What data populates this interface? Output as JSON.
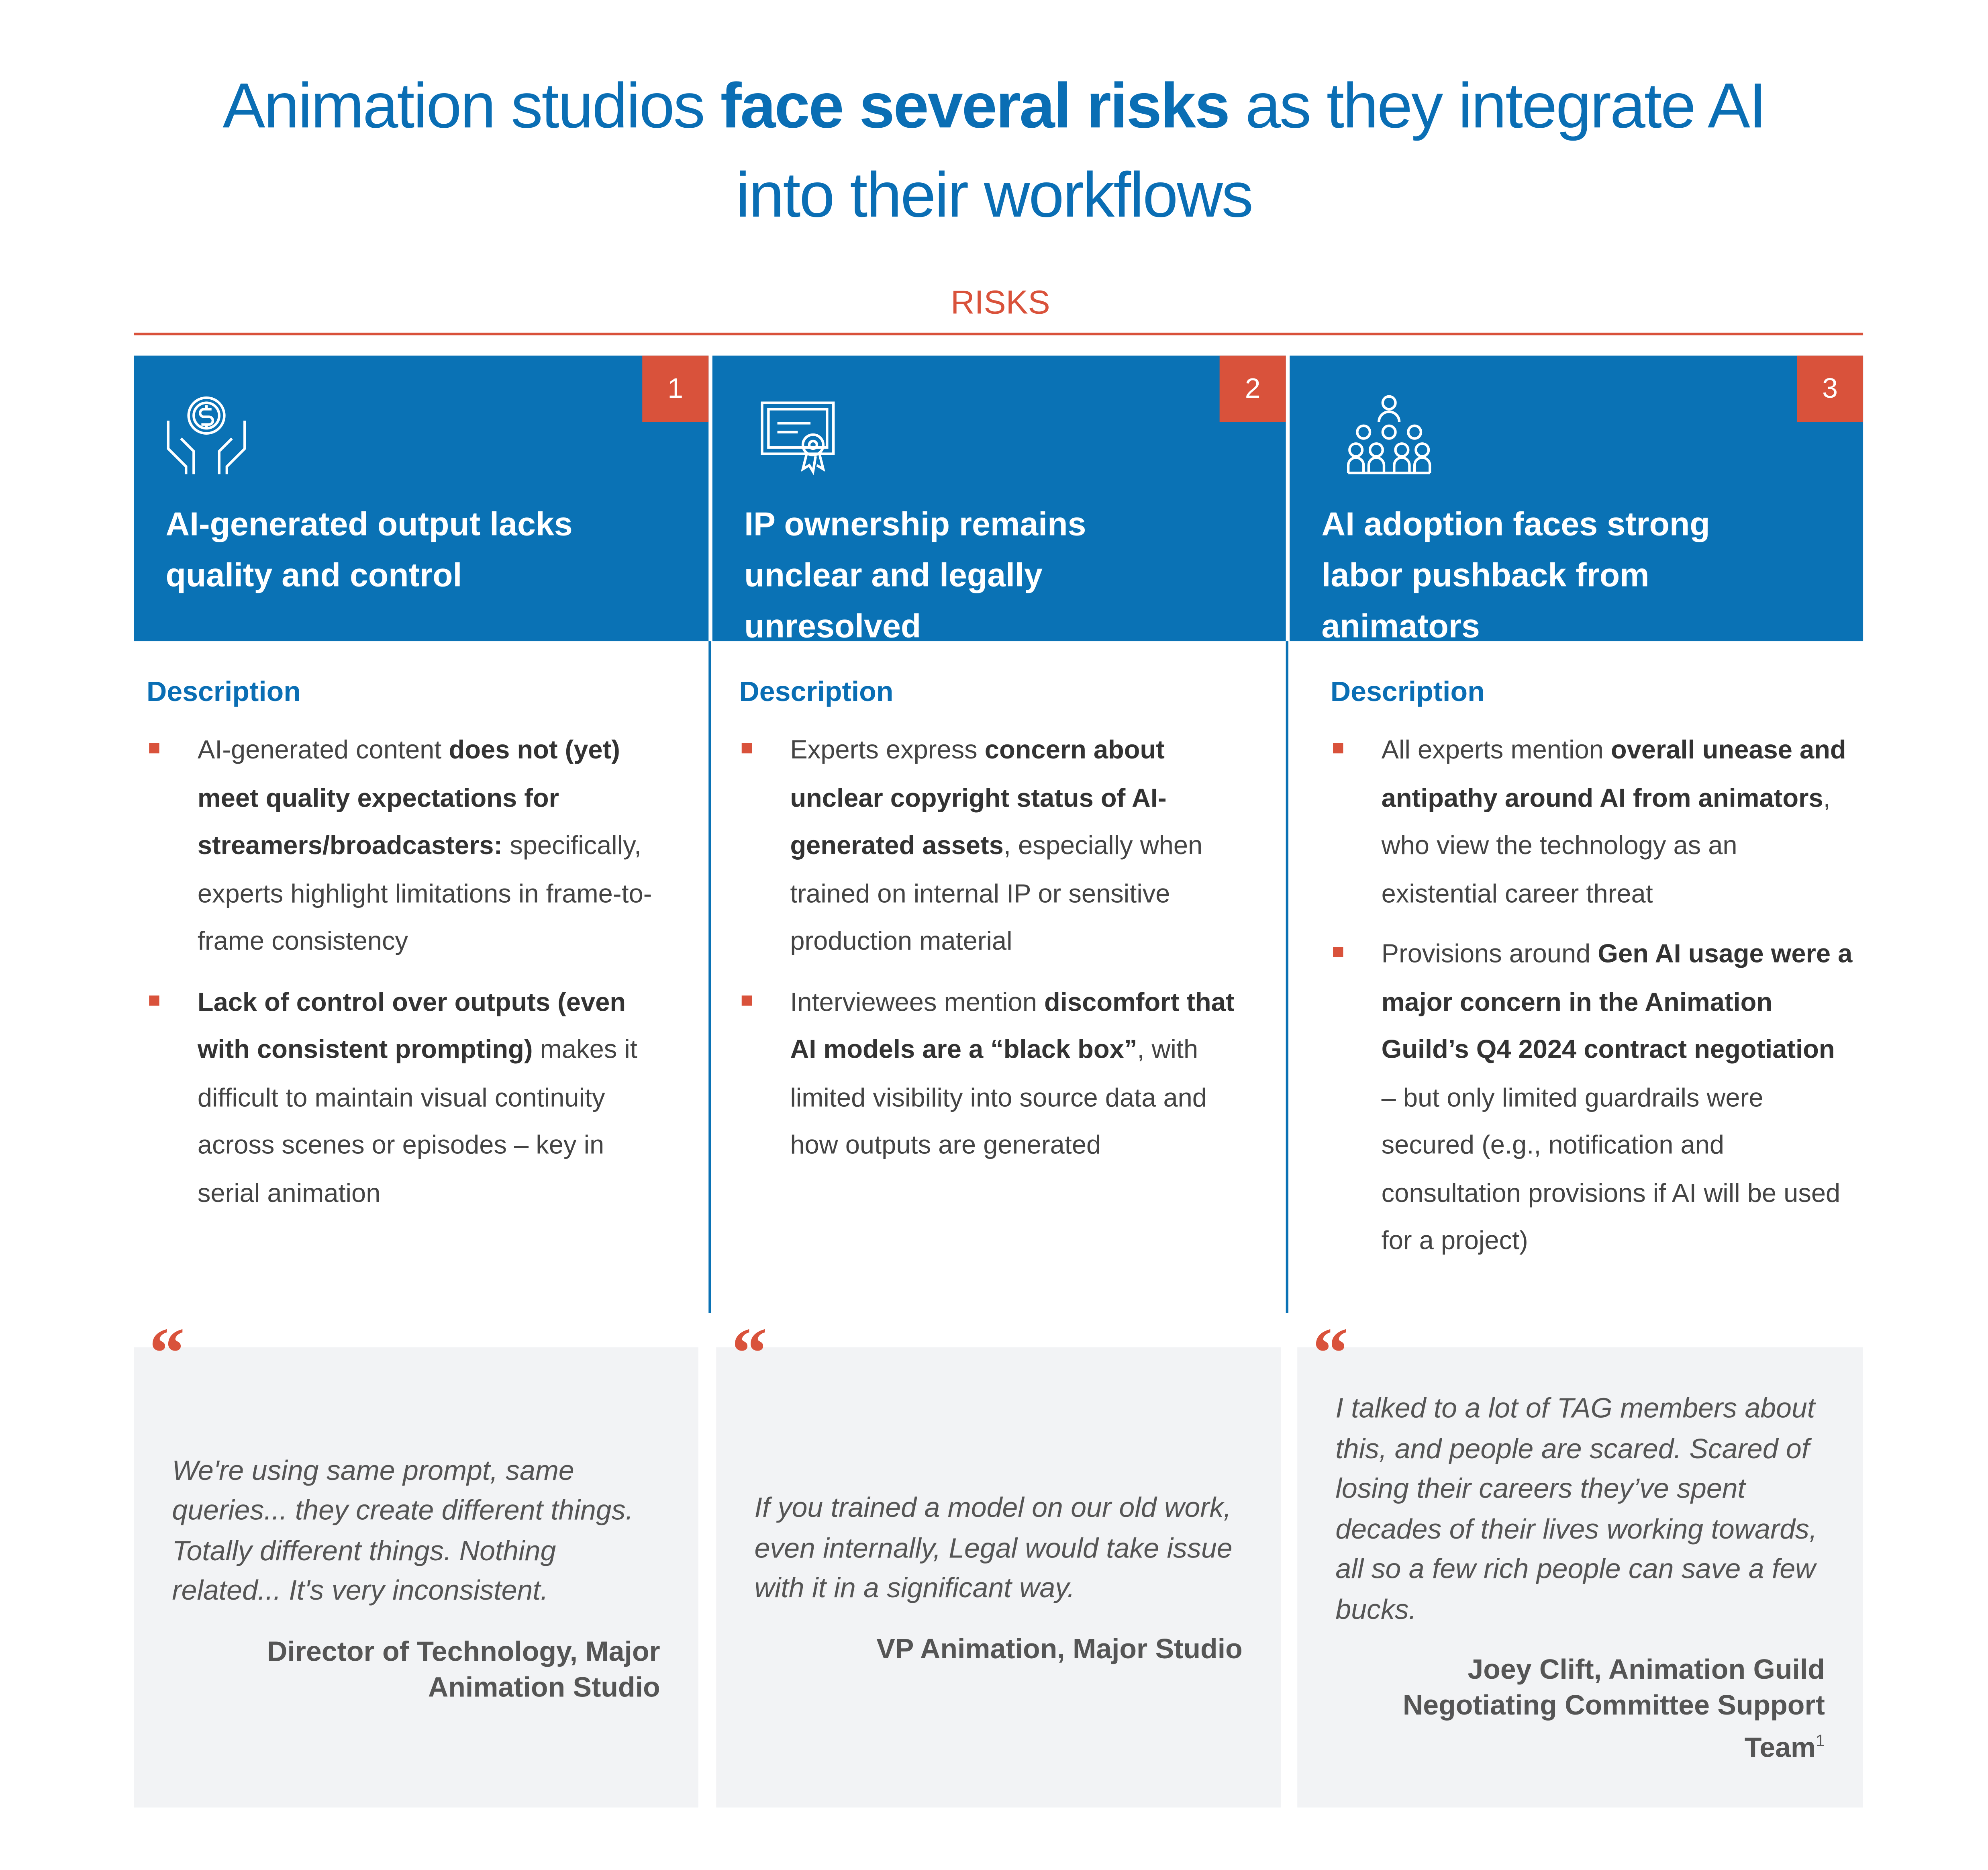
{
  "header": {
    "title": [
      {
        "text": "Animation studios "
      },
      {
        "text": "face several risks",
        "strong": true
      },
      {
        "text": " as they integrate AI into their workflows"
      }
    ],
    "section": "RISKS"
  },
  "columns": [
    {
      "number": "1",
      "heading": "AI-generated output lacks quality and control",
      "description_label": "Description",
      "bullets": [
        [
          {
            "text": "AI-generated content "
          },
          {
            "text": "does not (yet) meet quality expectations for streamers/broadcasters:",
            "strong": true
          },
          {
            "text": " specifically, experts highlight limitations in frame-to-frame consistency"
          }
        ],
        [
          {
            "text": "Lack of control over outputs (even with consistent prompting)",
            "strong": true
          },
          {
            "text": " makes it difficult to maintain visual continuity across scenes or episodes – key in serial animation"
          }
        ]
      ],
      "quote": "We're using same prompt, same queries... they create different things. Totally different things. Nothing related... It's very inconsistent.",
      "attribution": "Director of Technology, Major Animation Studio"
    },
    {
      "number": "2",
      "heading": "IP ownership remains unclear and legally unresolved",
      "description_label": "Description",
      "bullets": [
        [
          {
            "text": "Experts express "
          },
          {
            "text": "concern about unclear copyright status of AI-generated assets",
            "strong": true
          },
          {
            "text": ", especially when trained on internal IP or sensitive production material"
          }
        ],
        [
          {
            "text": "Interviewees mention "
          },
          {
            "text": "discomfort that AI models are a “black box”",
            "strong": true
          },
          {
            "text": ", with limited visibility into source data and how outputs are generated"
          }
        ]
      ],
      "quote": "If you trained a model on our old work, even internally, Legal would take issue with it in a significant way.",
      "attribution": "VP Animation, Major Studio"
    },
    {
      "number": "3",
      "heading": "AI adoption faces strong labor pushback from animators",
      "description_label": "Description",
      "bullets": [
        [
          {
            "text": "All experts mention "
          },
          {
            "text": "overall unease and antipathy around AI from animators",
            "strong": true
          },
          {
            "text": ", who view the technology as an existential career threat"
          }
        ],
        [
          {
            "text": "Provisions around "
          },
          {
            "text": "Gen AI usage were a major concern in the Animation Guild’s Q4 2024 contract negotiation",
            "strong": true
          },
          {
            "text": " – but only limited guardrails were secured (e.g., notification and consultation provisions if AI will be used for a project)"
          }
        ]
      ],
      "quote": "I talked to a lot of TAG members about this, and people are scared. Scared of losing their careers they’ve spent decades of their lives working towards, all so a few rich people can save a few bucks.",
      "attribution": "Joey Clift, Animation Guild Negotiating Committee Support Team",
      "footnote": "1"
    }
  ]
}
